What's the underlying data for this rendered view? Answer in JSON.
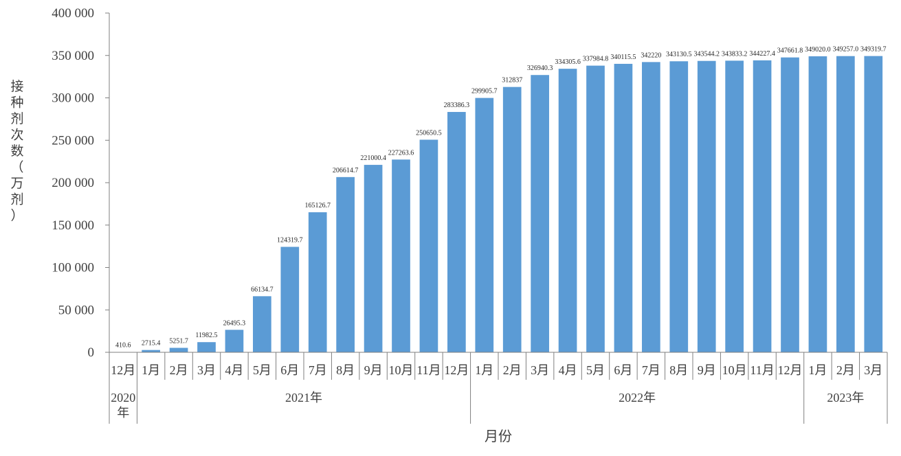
{
  "chart_data": {
    "type": "bar",
    "ylabel": "接种剂次数（万剂）",
    "ylabel_chars": [
      "接",
      "种",
      "剂",
      "次",
      "数",
      "（",
      "万",
      "剂",
      "）"
    ],
    "xlabel": "月份",
    "ylim": [
      0,
      400000
    ],
    "yticks": [
      0,
      50000,
      100000,
      150000,
      200000,
      250000,
      300000,
      350000,
      400000
    ],
    "ytick_labels": [
      "0",
      "50 000",
      "100 000",
      "150 000",
      "200 000",
      "250 000",
      "300 000",
      "350 000",
      "400 000"
    ],
    "categories": [
      "12月",
      "1月",
      "2月",
      "3月",
      "4月",
      "5月",
      "6月",
      "7月",
      "8月",
      "9月",
      "10月",
      "11月",
      "12月",
      "1月",
      "2月",
      "3月",
      "4月",
      "5月",
      "6月",
      "7月",
      "8月",
      "9月",
      "10月",
      "11月",
      "12月",
      "1月",
      "2月",
      "3月"
    ],
    "values": [
      410.6,
      2715.4,
      5251.7,
      11982.5,
      26495.3,
      66134.7,
      124319.7,
      165126.7,
      206614.7,
      221000.4,
      227263.6,
      250650.5,
      283386.3,
      299905.7,
      312837,
      326940.3,
      334305.6,
      337984.8,
      340115.5,
      342220,
      343130.5,
      343544.2,
      343833.2,
      344227.4,
      347661.8,
      349020.0,
      349257.0,
      349319.7
    ],
    "value_labels": [
      "410.6",
      "2715.4",
      "5251.7",
      "11982.5",
      "26495.3",
      "66134.7",
      "124319.7",
      "165126.7",
      "206614.7",
      "221000.4",
      "227263.6",
      "250650.5",
      "283386.3",
      "299905.7",
      "312837",
      "326940.3",
      "334305.6",
      "337984.8",
      "340115.5",
      "342220",
      "343130.5",
      "343544.2",
      "343833.2",
      "344227.4",
      "347661.8",
      "349020.0",
      "349257.0",
      "349319.7"
    ],
    "groups": [
      {
        "label": "2020年",
        "start": 0,
        "count": 1
      },
      {
        "label": "2021年",
        "start": 1,
        "count": 12
      },
      {
        "label": "2022年",
        "start": 13,
        "count": 12
      },
      {
        "label": "2023年",
        "start": 25,
        "count": 3
      }
    ],
    "bar_color": "#5b9bd5",
    "grid": false,
    "legend": "none"
  }
}
